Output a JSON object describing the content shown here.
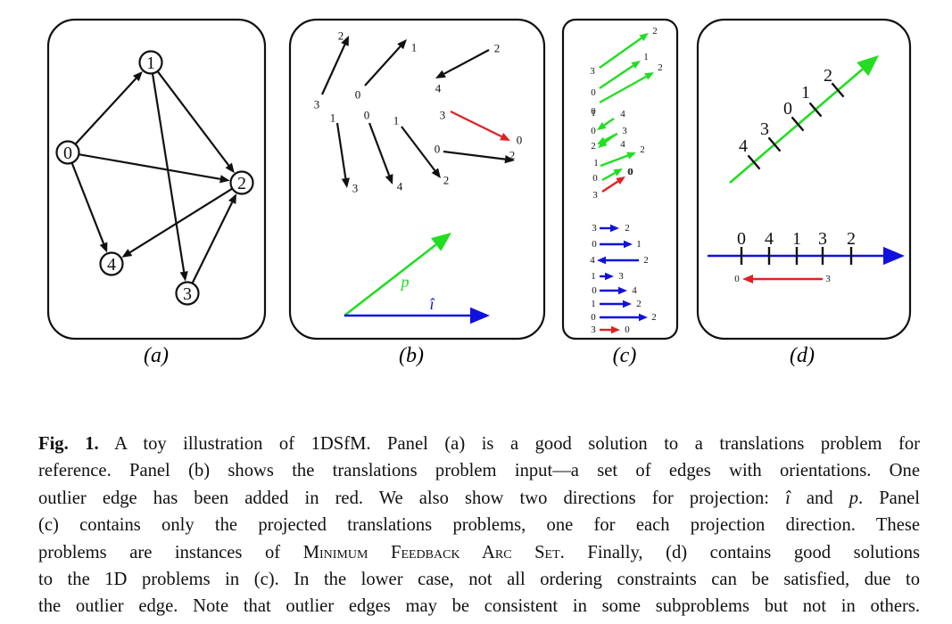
{
  "panels": {
    "a": {
      "label": "(a)",
      "nodes": [
        {
          "id": "0",
          "label": "0"
        },
        {
          "id": "1",
          "label": "1"
        },
        {
          "id": "2",
          "label": "2"
        },
        {
          "id": "3",
          "label": "3"
        },
        {
          "id": "4",
          "label": "4"
        }
      ],
      "edges": [
        [
          "0",
          "1"
        ],
        [
          "0",
          "2"
        ],
        [
          "0",
          "4"
        ],
        [
          "1",
          "2"
        ],
        [
          "1",
          "3"
        ],
        [
          "2",
          "4"
        ],
        [
          "3",
          "2"
        ]
      ]
    },
    "b": {
      "label": "(b)",
      "edge_pairs": [
        {
          "from": "3",
          "to": "2"
        },
        {
          "from": "0",
          "to": "1"
        },
        {
          "from": "2",
          "to": "4"
        },
        {
          "from": "1",
          "to": "3"
        },
        {
          "from": "0",
          "to": "4"
        },
        {
          "from": "1",
          "to": "2"
        },
        {
          "from": "3",
          "to": "0",
          "outlier": true
        },
        {
          "from": "0",
          "to": "2"
        }
      ],
      "direction_p": "p",
      "direction_i": "î"
    },
    "c": {
      "label": "(c)",
      "green_edges": [
        {
          "from": "3",
          "to": "2"
        },
        {
          "from": "0",
          "to": "1"
        },
        {
          "from": "0",
          "to": "2"
        },
        {
          "from": "4",
          "to": "1"
        },
        {
          "from": "3",
          "to": "0"
        },
        {
          "from": "4",
          "to": "2"
        },
        {
          "from": "1",
          "to": "2"
        },
        {
          "from": "0",
          "to": "0"
        },
        {
          "from": "3",
          "to": "0",
          "outlier": true
        }
      ],
      "blue_edges": [
        {
          "from": "3",
          "to": "2"
        },
        {
          "from": "0",
          "to": "1"
        },
        {
          "from": "4",
          "to": "2"
        },
        {
          "from": "1",
          "to": "3"
        },
        {
          "from": "0",
          "to": "4"
        },
        {
          "from": "1",
          "to": "2"
        },
        {
          "from": "0",
          "to": "2"
        },
        {
          "from": "3",
          "to": "0",
          "outlier": true
        }
      ]
    },
    "d": {
      "label": "(d)",
      "green_order": [
        "4",
        "3",
        "0",
        "1",
        "2"
      ],
      "blue_order": [
        "0",
        "4",
        "1",
        "3",
        "2"
      ],
      "outlier": {
        "from": "3",
        "to": "0"
      }
    }
  },
  "caption": {
    "fig_label": "Fig. 1.",
    "lines": [
      " A toy illustration of 1DSfM. Panel (a) is a good solution to a translations problem for",
      "reference. Panel (b) shows the translations problem input—a set of edges with orientations. One",
      "outlier edge has been added in red. We also show two directions for projection: ",
      "î",
      " and ",
      "p",
      ". Panel",
      "(c) contains only the projected translations problems, one for each projection direction. These",
      "problems are instances of ",
      "Minimum Feedback Arc Set",
      ". Finally, (d) contains good solutions",
      "to the 1D problems in (c). In the lower case, not all ordering constraints can be satisfied, due to",
      "the outlier edge. Note that outlier edges may be consistent in some subproblems but not in others."
    ]
  },
  "colors": {
    "green": "#22dd22",
    "blue": "#1111dd",
    "red": "#dd2222",
    "black": "#111111"
  }
}
